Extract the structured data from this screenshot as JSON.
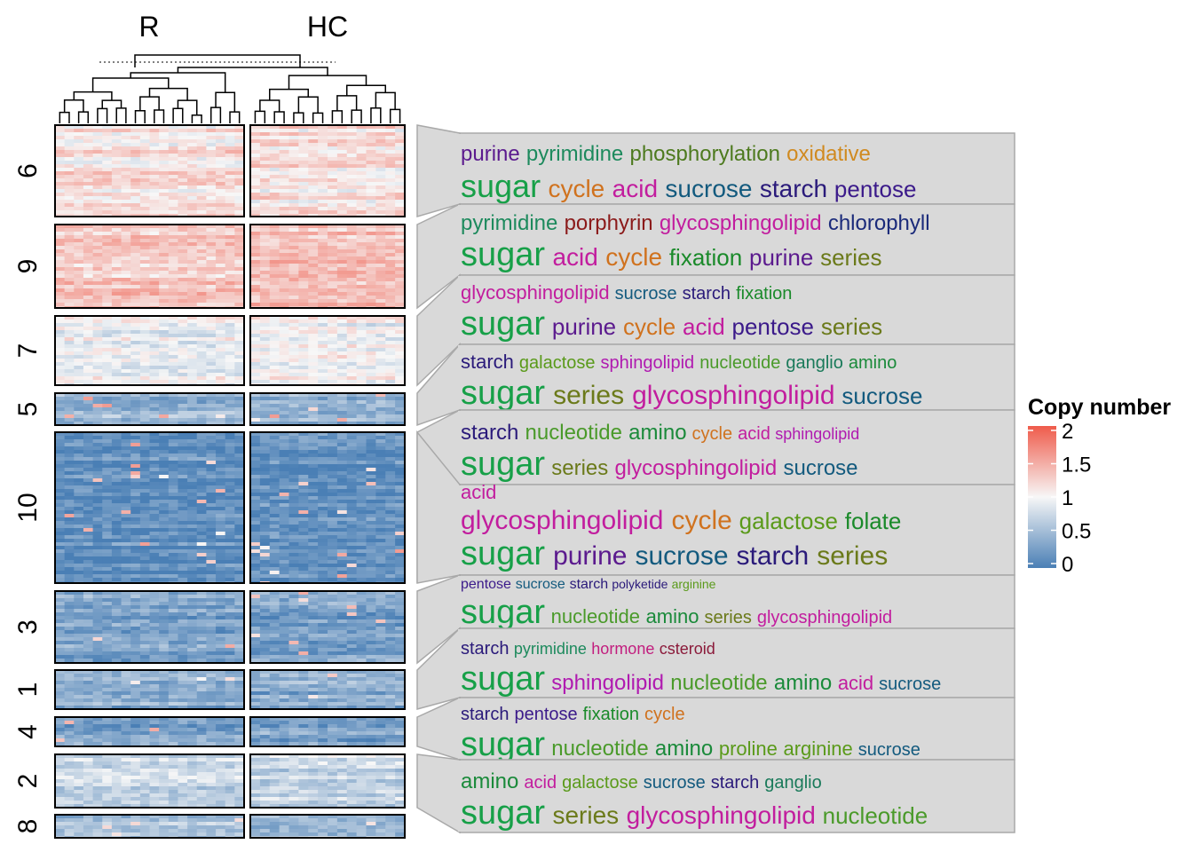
{
  "chart_data": {
    "type": "heatmap",
    "columns": [
      "R",
      "HC"
    ],
    "legend": {
      "title": "Copy number",
      "ticks": [
        "2",
        "1.5",
        "1",
        "0.5",
        "0"
      ],
      "range": [
        0,
        2
      ],
      "colors": {
        "low": "#4a7fb5",
        "mid": "#f7f7f7",
        "high": "#ef5b4b"
      }
    },
    "clusters": [
      {
        "id": "6",
        "level": 1.15,
        "words": [
          {
            "t": "purine",
            "s": 24,
            "c": "#5b1a8e"
          },
          {
            "t": "pyrimidine",
            "s": 24,
            "c": "#1d8a5d"
          },
          {
            "t": "phosphorylation",
            "s": 24,
            "c": "#4d7a1e"
          },
          {
            "t": "oxidative",
            "s": 24,
            "c": "#d08a20"
          },
          {
            "t": "sugar",
            "s": 36,
            "c": "#17a048"
          },
          {
            "t": "cycle",
            "s": 28,
            "c": "#d0721e"
          },
          {
            "t": "acid",
            "s": 28,
            "c": "#c21d9e"
          },
          {
            "t": "sucrose",
            "s": 28,
            "c": "#135a7e"
          },
          {
            "t": "starch",
            "s": 28,
            "c": "#2a1a7a"
          },
          {
            "t": "pentose",
            "s": 26,
            "c": "#3b1a8a"
          }
        ]
      },
      {
        "id": "9",
        "level": 1.3,
        "words": [
          {
            "t": "pyrimidine",
            "s": 24,
            "c": "#1d8a5d"
          },
          {
            "t": "porphyrin",
            "s": 24,
            "c": "#8b1a1a"
          },
          {
            "t": "glycosphingolipid",
            "s": 24,
            "c": "#c21d9e"
          },
          {
            "t": "chlorophyll",
            "s": 24,
            "c": "#1a2a7a"
          },
          {
            "t": "sugar",
            "s": 38,
            "c": "#17a048"
          },
          {
            "t": "acid",
            "s": 28,
            "c": "#c21d9e"
          },
          {
            "t": "cycle",
            "s": 28,
            "c": "#d0721e"
          },
          {
            "t": "fixation",
            "s": 26,
            "c": "#1a8a2a"
          },
          {
            "t": "purine",
            "s": 26,
            "c": "#5b1a8e"
          },
          {
            "t": "series",
            "s": 26,
            "c": "#6b7a1a"
          }
        ]
      },
      {
        "id": "7",
        "level": 0.95,
        "words": [
          {
            "t": "glycosphingolipid",
            "s": 22,
            "c": "#c21d9e"
          },
          {
            "t": "sucrose",
            "s": 20,
            "c": "#135a7e"
          },
          {
            "t": "starch",
            "s": 20,
            "c": "#2a1a7a"
          },
          {
            "t": "fixation",
            "s": 20,
            "c": "#1a8a2a"
          },
          {
            "t": "sugar",
            "s": 38,
            "c": "#17a048"
          },
          {
            "t": "purine",
            "s": 26,
            "c": "#5b1a8e"
          },
          {
            "t": "cycle",
            "s": 26,
            "c": "#d0721e"
          },
          {
            "t": "acid",
            "s": 26,
            "c": "#c21d9e"
          },
          {
            "t": "pentose",
            "s": 26,
            "c": "#3b1a8a"
          },
          {
            "t": "series",
            "s": 26,
            "c": "#6b7a1a"
          }
        ]
      },
      {
        "id": "5",
        "level": 0.45,
        "words": [
          {
            "t": "starch",
            "s": 22,
            "c": "#2a1a7a"
          },
          {
            "t": "galactose",
            "s": 20,
            "c": "#5a9a1a"
          },
          {
            "t": "sphingolipid",
            "s": 20,
            "c": "#b01ab0"
          },
          {
            "t": "nucleotide",
            "s": 20,
            "c": "#4a9a2a"
          },
          {
            "t": "ganglio",
            "s": 20,
            "c": "#1a7a5a"
          },
          {
            "t": "amino",
            "s": 20,
            "c": "#1a8a3a"
          },
          {
            "t": "sugar",
            "s": 38,
            "c": "#17a048"
          },
          {
            "t": "series",
            "s": 30,
            "c": "#6b7a1a"
          },
          {
            "t": "glycosphingolipid",
            "s": 30,
            "c": "#c21d9e"
          },
          {
            "t": "sucrose",
            "s": 26,
            "c": "#135a7e"
          }
        ]
      },
      {
        "id": "10",
        "level": 0.12,
        "words": [
          {
            "t": "starch",
            "s": 24,
            "c": "#2a1a7a"
          },
          {
            "t": "nucleotide",
            "s": 24,
            "c": "#4a9a2a"
          },
          {
            "t": "amino",
            "s": 24,
            "c": "#1a8a3a"
          },
          {
            "t": "cycle",
            "s": 20,
            "c": "#d0721e"
          },
          {
            "t": "acid",
            "s": 20,
            "c": "#c21d9e"
          },
          {
            "t": "sphingolipid",
            "s": 18,
            "c": "#b01ab0"
          },
          {
            "t": "sugar",
            "s": 38,
            "c": "#17a048"
          },
          {
            "t": "series",
            "s": 24,
            "c": "#6b7a1a"
          },
          {
            "t": "glycosphingolipid",
            "s": 24,
            "c": "#c21d9e"
          },
          {
            "t": "sucrose",
            "s": 24,
            "c": "#135a7e"
          }
        ]
      },
      {
        "id": "10b",
        "level": 0.12,
        "words": [
          {
            "t": "acid",
            "s": 22,
            "c": "#c21d9e"
          },
          {
            "t": "glycosphingolipid",
            "s": 30,
            "c": "#c21d9e"
          },
          {
            "t": "cycle",
            "s": 30,
            "c": "#d0721e"
          },
          {
            "t": "galactose",
            "s": 26,
            "c": "#5a9a1a"
          },
          {
            "t": "folate",
            "s": 26,
            "c": "#1a8a2a"
          },
          {
            "t": "sugar",
            "s": 38,
            "c": "#17a048"
          },
          {
            "t": "purine",
            "s": 30,
            "c": "#5b1a8e"
          },
          {
            "t": "sucrose",
            "s": 30,
            "c": "#135a7e"
          },
          {
            "t": "starch",
            "s": 30,
            "c": "#2a1a7a"
          },
          {
            "t": "series",
            "s": 30,
            "c": "#6b7a1a"
          }
        ]
      },
      {
        "id": "3",
        "level": 0.3,
        "words": [
          {
            "t": "pentose",
            "s": 16,
            "c": "#3b1a8a"
          },
          {
            "t": "sucrose",
            "s": 16,
            "c": "#135a7e"
          },
          {
            "t": "starch",
            "s": 16,
            "c": "#2a1a7a"
          },
          {
            "t": "polyketide",
            "s": 14,
            "c": "#2a1a7a"
          },
          {
            "t": "arginine",
            "s": 14,
            "c": "#5a9a1a"
          },
          {
            "t": "sugar",
            "s": 38,
            "c": "#17a048"
          },
          {
            "t": "nucleotide",
            "s": 22,
            "c": "#4a9a2a"
          },
          {
            "t": "amino",
            "s": 22,
            "c": "#1a8a3a"
          },
          {
            "t": "series",
            "s": 20,
            "c": "#6b7a1a"
          },
          {
            "t": "glycosphingolipid",
            "s": 20,
            "c": "#c21d9e"
          }
        ]
      },
      {
        "id": "1",
        "level": 0.35,
        "words": [
          {
            "t": "starch",
            "s": 20,
            "c": "#2a1a7a"
          },
          {
            "t": "pyrimidine",
            "s": 18,
            "c": "#1d8a5d"
          },
          {
            "t": "hormone",
            "s": 18,
            "c": "#c21d7e"
          },
          {
            "t": "csteroid",
            "s": 18,
            "c": "#8b1a3a"
          },
          {
            "t": "sugar",
            "s": 38,
            "c": "#17a048"
          },
          {
            "t": "sphingolipid",
            "s": 24,
            "c": "#b01ab0"
          },
          {
            "t": "nucleotide",
            "s": 24,
            "c": "#4a9a2a"
          },
          {
            "t": "amino",
            "s": 24,
            "c": "#1a8a3a"
          },
          {
            "t": "acid",
            "s": 22,
            "c": "#c21d9e"
          },
          {
            "t": "sucrose",
            "s": 20,
            "c": "#135a7e"
          }
        ]
      },
      {
        "id": "4",
        "level": 0.3,
        "words": [
          {
            "t": "starch",
            "s": 20,
            "c": "#2a1a7a"
          },
          {
            "t": "pentose",
            "s": 20,
            "c": "#3b1a8a"
          },
          {
            "t": "fixation",
            "s": 20,
            "c": "#1a8a2a"
          },
          {
            "t": "cycle",
            "s": 20,
            "c": "#d0721e"
          },
          {
            "t": "sugar",
            "s": 38,
            "c": "#17a048"
          },
          {
            "t": "nucleotide",
            "s": 24,
            "c": "#4a9a2a"
          },
          {
            "t": "amino",
            "s": 24,
            "c": "#1a8a3a"
          },
          {
            "t": "proline",
            "s": 22,
            "c": "#5a9a1a"
          },
          {
            "t": "arginine",
            "s": 22,
            "c": "#5a9a1a"
          },
          {
            "t": "sucrose",
            "s": 20,
            "c": "#135a7e"
          }
        ]
      },
      {
        "id": "2",
        "level": 0.75,
        "words": [
          {
            "t": "amino",
            "s": 24,
            "c": "#1a8a3a"
          },
          {
            "t": "acid",
            "s": 20,
            "c": "#c21d9e"
          },
          {
            "t": "galactose",
            "s": 20,
            "c": "#5a9a1a"
          },
          {
            "t": "sucrose",
            "s": 20,
            "c": "#135a7e"
          },
          {
            "t": "starch",
            "s": 20,
            "c": "#2a1a7a"
          },
          {
            "t": "ganglio",
            "s": 20,
            "c": "#1a7a5a"
          },
          {
            "t": "sugar",
            "s": 38,
            "c": "#17a048"
          },
          {
            "t": "series",
            "s": 28,
            "c": "#6b7a1a"
          },
          {
            "t": "glycosphingolipid",
            "s": 28,
            "c": "#c21d9e"
          },
          {
            "t": "nucleotide",
            "s": 26,
            "c": "#4a9a2a"
          }
        ]
      },
      {
        "id": "8",
        "level": 0.55,
        "words": []
      }
    ]
  }
}
